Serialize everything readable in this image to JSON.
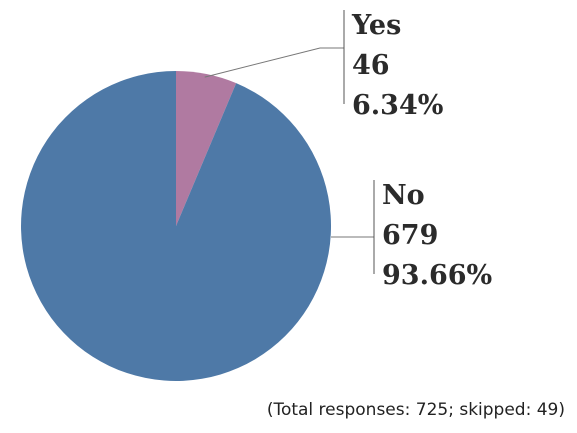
{
  "chart_data": {
    "type": "pie",
    "slices": [
      {
        "label": "Yes",
        "value": 46,
        "percent": "6.34%",
        "color": "#B07AA1"
      },
      {
        "label": "No",
        "value": 679,
        "percent": "93.66%",
        "color": "#4E79A7"
      }
    ],
    "footnote": "(Total responses: 725; skipped: 49)"
  }
}
